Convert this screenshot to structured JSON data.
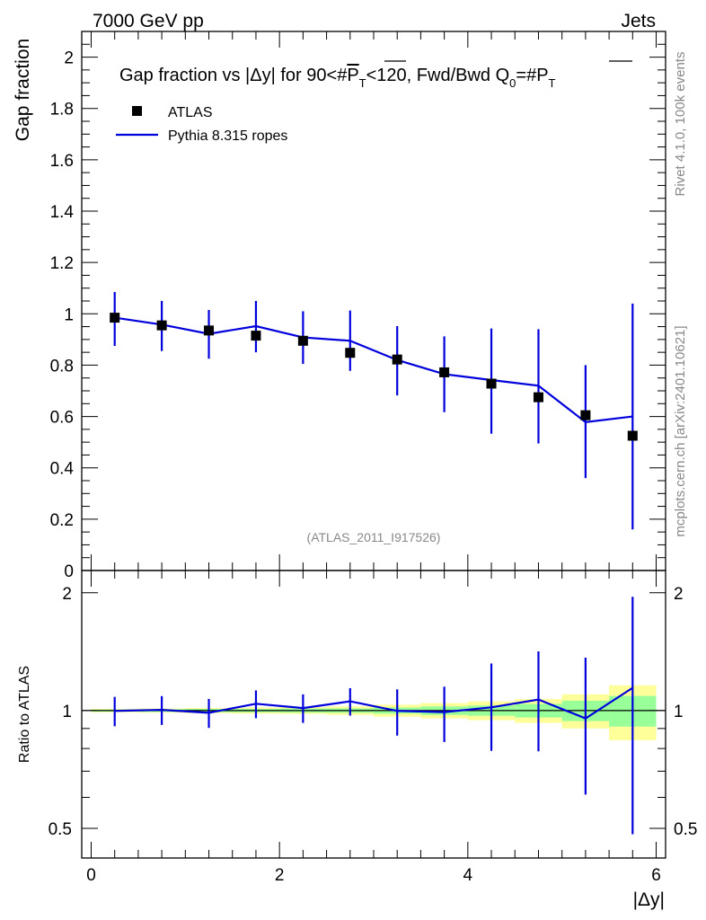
{
  "header": {
    "left": "7000 GeV pp",
    "right": "Jets"
  },
  "side": {
    "rivet": "Rivet 4.1.0,  100k events",
    "mcplots": "mcplots.cern.ch [arXiv:2401.10621]"
  },
  "title": {
    "part1": "Gap fraction vs |",
    "delta": "Δ",
    "part2": "y| for 90<#",
    "pt1": "P",
    "pt1_sub": "T",
    "part3": "<120, Fwd/Bwd Q",
    "q_sub": "0",
    "part4": "=#",
    "pt2": "P",
    "pt2_sub": "T"
  },
  "legend": {
    "data_label": "ATLAS",
    "mc_label": "Pythia 8.315 ropes"
  },
  "watermark": "(ATLAS_2011_I917526)",
  "colors": {
    "mc": "#0000dd",
    "data": "#000000",
    "band_inner": "#99ff99",
    "band_outer": "#ffff99"
  },
  "chart_data": [
    {
      "type": "scatter",
      "panel": "main",
      "ylabel": "Gap fraction",
      "xlim": [
        -0.1,
        6.1
      ],
      "ylim": [
        0,
        2.1
      ],
      "yticks": [
        "0",
        "0.2",
        "0.4",
        "0.6",
        "0.8",
        "1",
        "1.2",
        "1.4",
        "1.6",
        "1.8",
        "2"
      ],
      "x": [
        0.25,
        0.75,
        1.25,
        1.75,
        2.25,
        2.75,
        3.25,
        3.75,
        4.25,
        4.75,
        5.25,
        5.75
      ],
      "series": [
        {
          "name": "ATLAS",
          "values": [
            0.985,
            0.955,
            0.935,
            0.915,
            0.895,
            0.848,
            0.822,
            0.772,
            0.728,
            0.675,
            0.605,
            0.525
          ],
          "err_lo": [
            0.11,
            0.1,
            0.11,
            0.065,
            0.09,
            0.07,
            0.14,
            0.155,
            0.195,
            0.18,
            0.245,
            0.365
          ],
          "err_hi": [
            0.1,
            0.095,
            0.08,
            0.135,
            0.115,
            0.165,
            0.13,
            0.14,
            0.215,
            0.265,
            0.195,
            0.515
          ]
        },
        {
          "name": "Pythia 8.315 ropes",
          "values": [
            0.985,
            0.958,
            0.922,
            0.952,
            0.908,
            0.895,
            0.82,
            0.765,
            0.742,
            0.72,
            0.578,
            0.6
          ]
        }
      ]
    },
    {
      "type": "line",
      "panel": "ratio",
      "ylabel": "Ratio to ATLAS",
      "xlabel": "|Δy|",
      "xlim": [
        -0.1,
        6.1
      ],
      "ylim": [
        0.42,
        2.28
      ],
      "yscale": "log",
      "yticks": [
        "0.5",
        "1",
        "2"
      ],
      "xticks": [
        "0",
        "2",
        "4",
        "6"
      ],
      "x": [
        0.25,
        0.75,
        1.25,
        1.75,
        2.25,
        2.75,
        3.25,
        3.75,
        4.25,
        4.75,
        5.25,
        5.75
      ],
      "series": [
        {
          "name": "Pythia 8.315 ropes / ATLAS",
          "values": [
            0.998,
            1.004,
            0.987,
            1.041,
            1.015,
            1.056,
            0.998,
            0.991,
            1.019,
            1.067,
            0.955,
            1.143
          ],
          "err_lo": [
            0.086,
            0.085,
            0.084,
            0.085,
            0.085,
            0.085,
            0.135,
            0.16,
            0.23,
            0.28,
            0.345,
            0.66
          ],
          "err_hi": [
            0.086,
            0.085,
            0.084,
            0.085,
            0.085,
            0.085,
            0.135,
            0.16,
            0.3,
            0.35,
            0.41,
            0.81
          ]
        }
      ],
      "band_inner": [
        0.006,
        0.008,
        0.01,
        0.01,
        0.012,
        0.013,
        0.018,
        0.025,
        0.03,
        0.04,
        0.06,
        0.09
      ],
      "band_outer": [
        0.01,
        0.012,
        0.015,
        0.018,
        0.02,
        0.025,
        0.035,
        0.045,
        0.055,
        0.07,
        0.1,
        0.16
      ]
    }
  ]
}
